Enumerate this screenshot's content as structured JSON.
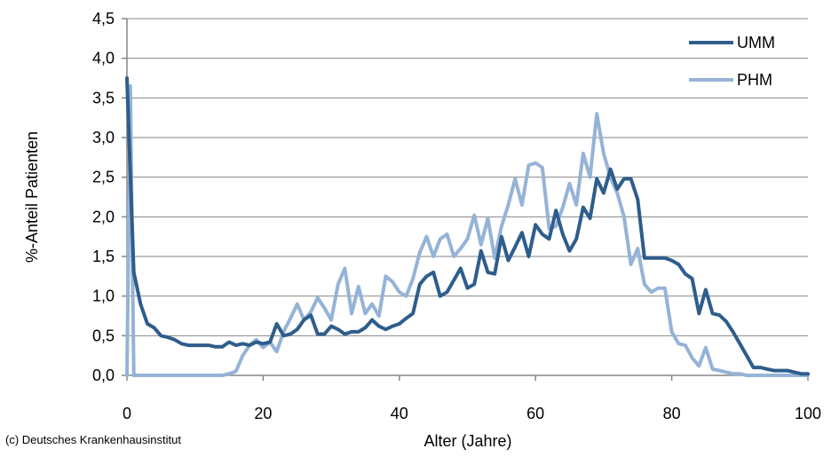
{
  "chart_data": {
    "type": "line",
    "xlabel": "Alter (Jahre)",
    "ylabel": "%-Anteil Patienten",
    "xlim": [
      0,
      100
    ],
    "ylim": [
      0,
      4.5
    ],
    "xticks": [
      0,
      20,
      40,
      60,
      80,
      100
    ],
    "yticks": [
      0,
      0.5,
      1.0,
      1.5,
      2.0,
      2.5,
      3.0,
      3.5,
      4.0,
      4.5
    ],
    "ytick_labels": [
      "0,0",
      "0,5",
      "1,0",
      "1,5",
      "2,0",
      "2,5",
      "3,0",
      "3,5",
      "4,0",
      "4,5"
    ],
    "grid": "horizontal",
    "legend_position": "top-right",
    "series": [
      {
        "name": "UMM",
        "color": "#2e5d8c",
        "x": [
          0,
          1,
          2,
          3,
          4,
          5,
          6,
          7,
          8,
          9,
          10,
          11,
          12,
          13,
          14,
          15,
          16,
          17,
          18,
          19,
          20,
          21,
          22,
          23,
          24,
          25,
          26,
          27,
          28,
          29,
          30,
          31,
          32,
          33,
          34,
          35,
          36,
          37,
          38,
          39,
          40,
          41,
          42,
          43,
          44,
          45,
          46,
          47,
          48,
          49,
          50,
          51,
          52,
          53,
          54,
          55,
          56,
          57,
          58,
          59,
          60,
          61,
          62,
          63,
          64,
          65,
          66,
          67,
          68,
          69,
          70,
          71,
          72,
          73,
          74,
          75,
          76,
          77,
          78,
          79,
          80,
          81,
          82,
          83,
          84,
          85,
          86,
          87,
          88,
          89,
          90,
          91,
          92,
          93,
          94,
          95,
          96,
          97,
          98,
          99,
          100
        ],
        "y": [
          3.75,
          1.3,
          0.9,
          0.65,
          0.6,
          0.5,
          0.48,
          0.45,
          0.4,
          0.38,
          0.38,
          0.38,
          0.38,
          0.36,
          0.36,
          0.42,
          0.38,
          0.4,
          0.38,
          0.42,
          0.4,
          0.42,
          0.65,
          0.5,
          0.52,
          0.58,
          0.7,
          0.76,
          0.52,
          0.52,
          0.62,
          0.58,
          0.52,
          0.55,
          0.55,
          0.6,
          0.7,
          0.62,
          0.58,
          0.62,
          0.65,
          0.72,
          0.78,
          1.15,
          1.25,
          1.3,
          1.0,
          1.05,
          1.2,
          1.35,
          1.1,
          1.15,
          1.57,
          1.3,
          1.28,
          1.75,
          1.45,
          1.62,
          1.8,
          1.5,
          1.9,
          1.78,
          1.72,
          2.08,
          1.78,
          1.57,
          1.72,
          2.12,
          1.98,
          2.48,
          2.3,
          2.6,
          2.35,
          2.48,
          2.48,
          2.22,
          1.48,
          1.48,
          1.48,
          1.48,
          1.45,
          1.4,
          1.28,
          1.22,
          0.78,
          1.08,
          0.78,
          0.76,
          0.68,
          0.55,
          0.4,
          0.25,
          0.1,
          0.1,
          0.08,
          0.06,
          0.06,
          0.06,
          0.04,
          0.02,
          0.02
        ]
      },
      {
        "name": "PHM",
        "color": "#95b3d7",
        "x": [
          0,
          0.5,
          1,
          2,
          3,
          4,
          5,
          6,
          7,
          8,
          9,
          10,
          11,
          12,
          13,
          14,
          15,
          16,
          17,
          18,
          19,
          20,
          21,
          22,
          23,
          24,
          25,
          26,
          27,
          28,
          29,
          30,
          31,
          32,
          33,
          34,
          35,
          36,
          37,
          38,
          39,
          40,
          41,
          42,
          43,
          44,
          45,
          46,
          47,
          48,
          49,
          50,
          51,
          52,
          53,
          54,
          55,
          56,
          57,
          58,
          59,
          60,
          61,
          62,
          63,
          64,
          65,
          66,
          67,
          68,
          69,
          70,
          71,
          72,
          73,
          74,
          75,
          76,
          77,
          78,
          79,
          80,
          81,
          82,
          83,
          84,
          85,
          86,
          87,
          88,
          89,
          90,
          91,
          92,
          93,
          94,
          95,
          96,
          97,
          98,
          99,
          100
        ],
        "y": [
          0,
          3.65,
          0,
          0,
          0,
          0,
          0,
          0,
          0,
          0,
          0,
          0,
          0,
          0,
          0,
          0,
          0.02,
          0.05,
          0.25,
          0.38,
          0.45,
          0.35,
          0.42,
          0.3,
          0.55,
          0.72,
          0.9,
          0.7,
          0.8,
          0.98,
          0.85,
          0.7,
          1.15,
          1.35,
          0.78,
          1.12,
          0.78,
          0.9,
          0.75,
          1.25,
          1.18,
          1.05,
          1.0,
          1.22,
          1.55,
          1.75,
          1.5,
          1.72,
          1.78,
          1.5,
          1.6,
          1.72,
          2.02,
          1.65,
          1.98,
          1.48,
          1.88,
          2.15,
          2.48,
          2.15,
          2.65,
          2.68,
          2.62,
          1.85,
          1.88,
          2.12,
          2.42,
          2.15,
          2.8,
          2.5,
          3.3,
          2.8,
          2.5,
          2.3,
          2.0,
          1.4,
          1.6,
          1.15,
          1.05,
          1.1,
          1.1,
          0.55,
          0.4,
          0.38,
          0.22,
          0.12,
          0.35,
          0.08,
          0.06,
          0.04,
          0.02,
          0.02,
          0,
          0,
          0,
          0,
          0,
          0,
          0,
          0,
          0,
          0
        ]
      }
    ]
  },
  "credit": "(c) Deutsches Krankenhausinstitut"
}
